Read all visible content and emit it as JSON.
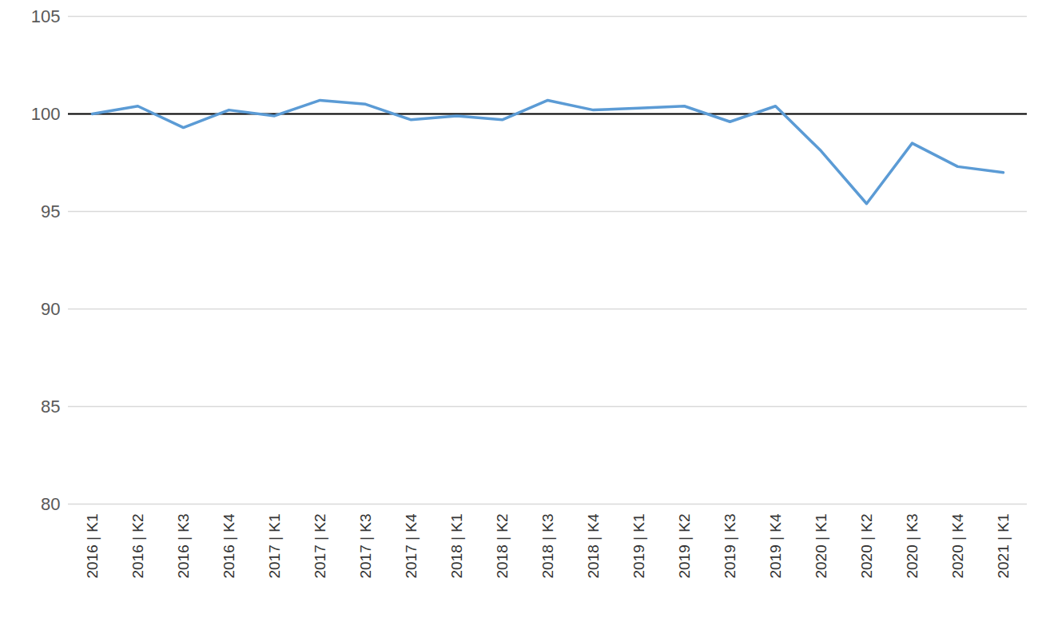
{
  "chart_data": {
    "type": "line",
    "categories": [
      "2016 | K1",
      "2016 | K2",
      "2016 | K3",
      "2016 | K4",
      "2017 | K1",
      "2017 | K2",
      "2017 | K3",
      "2017 | K4",
      "2018 | K1",
      "2018 | K2",
      "2018 | K3",
      "2018 | K4",
      "2019 | K1",
      "2019 | K2",
      "2019 | K3",
      "2019 | K4",
      "2020 | K1",
      "2020 | K2",
      "2020 | K3",
      "2020 | K4",
      "2021 | K1"
    ],
    "values": [
      100.0,
      100.4,
      99.3,
      100.2,
      99.9,
      100.7,
      100.5,
      99.7,
      99.9,
      99.7,
      100.7,
      100.2,
      100.3,
      100.4,
      99.6,
      100.4,
      98.1,
      95.4,
      98.5,
      97.3,
      97.0
    ],
    "color": "#5b9bd5",
    "reference_line": {
      "value": 100,
      "color": "#000000"
    },
    "ylim": [
      80,
      105
    ],
    "yticks": [
      80,
      85,
      90,
      95,
      100,
      105
    ],
    "grid": true
  }
}
